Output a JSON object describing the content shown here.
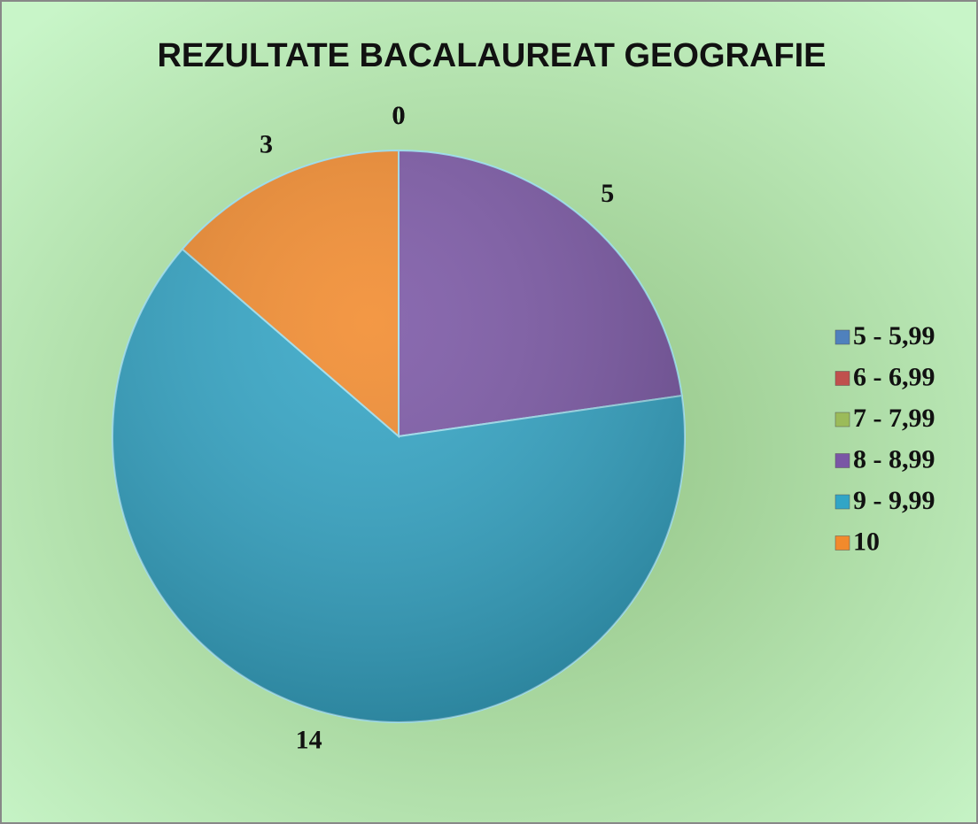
{
  "chart_data": {
    "type": "pie",
    "title": "REZULTATE BACALAUREAT GEOGRAFIE",
    "categories": [
      "5 - 5,99",
      "6 - 6,99",
      "7 - 7,99",
      "8 - 8,99",
      "9 - 9,99",
      "10"
    ],
    "values": [
      0,
      0,
      0,
      5,
      14,
      3
    ],
    "colors": [
      "#4f81bd",
      "#c0504d",
      "#9bbb59",
      "#7a56a5",
      "#31a5c6",
      "#f28a2c"
    ],
    "legend": "right"
  }
}
